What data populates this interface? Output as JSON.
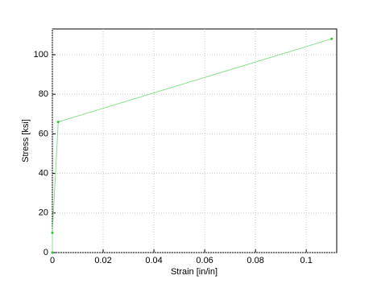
{
  "chart_data": {
    "type": "line",
    "x_label": "Strain [in/in]",
    "y_label": "Stress [ksi]",
    "series": [
      {
        "color": "#88e088",
        "marker_color": "#22cc22",
        "x": [
          0,
          0,
          0.0023,
          0.11
        ],
        "values": [
          0,
          10,
          66,
          108
        ]
      }
    ],
    "xlim": [
      0,
      0.112
    ],
    "xticks": [
      0,
      0.02,
      0.04,
      0.06,
      0.08,
      0.1
    ],
    "ylim": [
      0,
      113
    ],
    "yticks": [
      0,
      20,
      40,
      60,
      80,
      100
    ],
    "grid": true
  }
}
